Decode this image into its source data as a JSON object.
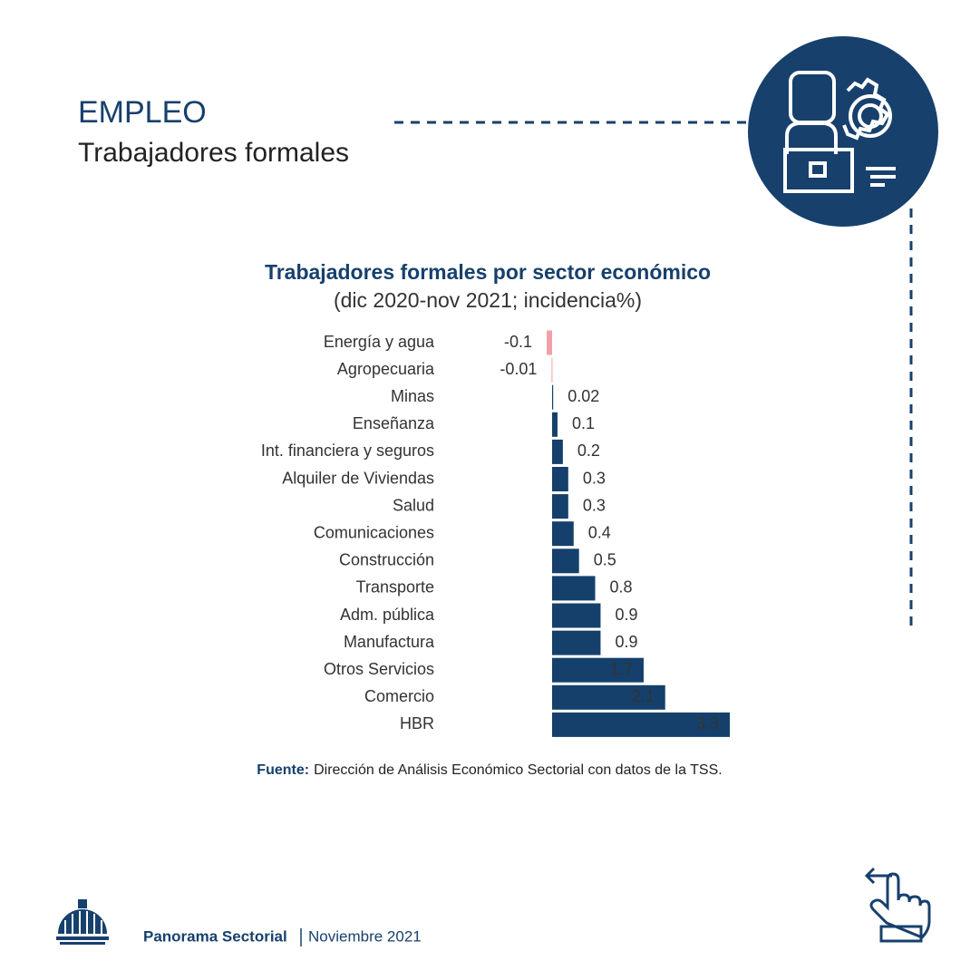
{
  "header": {
    "title": "EMPLEO",
    "subtitle": "Trabajadores formales"
  },
  "chart_data": {
    "type": "bar",
    "orientation": "horizontal",
    "title": "Trabajadores formales por sector económico",
    "subtitle": "(dic 2020-nov 2021; incidencia%)",
    "categories": [
      "Energía y agua",
      "Agropecuaria",
      "Minas",
      "Enseñanza",
      "Int. financiera y seguros",
      "Alquiler de Viviendas",
      "Salud",
      "Comunicaciones",
      "Construcción",
      "Transporte",
      "Adm. pública",
      "Manufactura",
      "Otros Servicios",
      "Comercio",
      "HBR"
    ],
    "values": [
      -0.1,
      -0.01,
      0.02,
      0.1,
      0.2,
      0.3,
      0.3,
      0.4,
      0.5,
      0.8,
      0.9,
      0.9,
      1.7,
      2.1,
      3.3
    ],
    "color": "#15406b",
    "negative_color": "#f2a0a6"
  },
  "source": {
    "label": "Fuente:",
    "text": "Dirección de Análisis Económico Sectorial con datos de la TSS."
  },
  "footer": {
    "publication": "Panorama Sectorial",
    "date": "Noviembre 2021"
  }
}
